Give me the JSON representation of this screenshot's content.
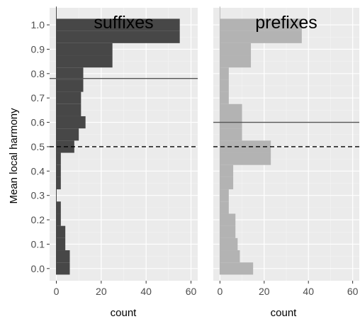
{
  "chart_data": {
    "type": "bar",
    "orientation": "horizontal",
    "bin_width": 0.05,
    "ylabel": "Mean local harmony",
    "ylim": [
      -0.05,
      1.07
    ],
    "y_ticks": [
      "0.0",
      "0.1",
      "0.2",
      "0.3",
      "0.4",
      "0.5",
      "0.6",
      "0.7",
      "0.8",
      "0.9",
      "1.0"
    ],
    "xlabel": "count",
    "xlim": [
      -3,
      63
    ],
    "x_ticks": [
      "0",
      "20",
      "40",
      "60"
    ],
    "grid": true,
    "reference_line": {
      "value": 0.5,
      "style": "dashed",
      "color": "#000000"
    },
    "panels": [
      {
        "title": "suffixes",
        "fill": "#474747",
        "mean_line": {
          "value": 0.78,
          "style": "solid",
          "color": "#555555"
        },
        "bins": [
          {
            "y": 0.0,
            "count": 6
          },
          {
            "y": 0.05,
            "count": 6
          },
          {
            "y": 0.1,
            "count": 4
          },
          {
            "y": 0.15,
            "count": 4
          },
          {
            "y": 0.2,
            "count": 2
          },
          {
            "y": 0.25,
            "count": 2
          },
          {
            "y": 0.3,
            "count": 0
          },
          {
            "y": 0.35,
            "count": 2
          },
          {
            "y": 0.4,
            "count": 2
          },
          {
            "y": 0.45,
            "count": 2
          },
          {
            "y": 0.5,
            "count": 8
          },
          {
            "y": 0.55,
            "count": 10
          },
          {
            "y": 0.6,
            "count": 13
          },
          {
            "y": 0.65,
            "count": 11
          },
          {
            "y": 0.7,
            "count": 11
          },
          {
            "y": 0.75,
            "count": 12
          },
          {
            "y": 0.8,
            "count": 12
          },
          {
            "y": 0.85,
            "count": 25
          },
          {
            "y": 0.9,
            "count": 25
          },
          {
            "y": 0.95,
            "count": 55
          },
          {
            "y": 1.0,
            "count": 55
          }
        ]
      },
      {
        "title": "prefixes",
        "fill": "#b3b3b3",
        "mean_line": {
          "value": 0.6,
          "style": "solid",
          "color": "#555555"
        },
        "bins": [
          {
            "y": 0.0,
            "count": 15
          },
          {
            "y": 0.05,
            "count": 9
          },
          {
            "y": 0.1,
            "count": 8
          },
          {
            "y": 0.15,
            "count": 7
          },
          {
            "y": 0.2,
            "count": 7
          },
          {
            "y": 0.25,
            "count": 4
          },
          {
            "y": 0.3,
            "count": 4
          },
          {
            "y": 0.35,
            "count": 6
          },
          {
            "y": 0.4,
            "count": 6
          },
          {
            "y": 0.45,
            "count": 23
          },
          {
            "y": 0.5,
            "count": 23
          },
          {
            "y": 0.55,
            "count": 10
          },
          {
            "y": 0.6,
            "count": 10
          },
          {
            "y": 0.65,
            "count": 10
          },
          {
            "y": 0.7,
            "count": 4
          },
          {
            "y": 0.75,
            "count": 4
          },
          {
            "y": 0.8,
            "count": 4
          },
          {
            "y": 0.85,
            "count": 14
          },
          {
            "y": 0.9,
            "count": 14
          },
          {
            "y": 0.95,
            "count": 37
          },
          {
            "y": 1.0,
            "count": 37
          }
        ]
      }
    ]
  }
}
